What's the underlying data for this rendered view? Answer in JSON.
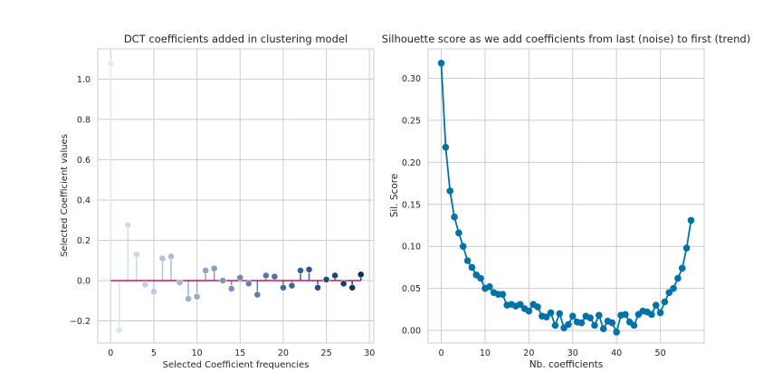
{
  "chart_data": [
    {
      "type": "stem",
      "title": "DCT coefficients added in clustering model",
      "xlabel": "Selected Coefficient frequencies",
      "ylabel": "Selected Coefficient values",
      "xlim": [
        -1.5,
        30.5
      ],
      "ylim": [
        -0.31,
        1.15
      ],
      "xticks": [
        0,
        5,
        10,
        15,
        20,
        25,
        30
      ],
      "yticks": [
        -0.2,
        0.0,
        0.2,
        0.4,
        0.6,
        0.8,
        1.0
      ],
      "ytick_labels": [
        "−0.2",
        "0.0",
        "0.2",
        "0.4",
        "0.6",
        "0.8",
        "1.0"
      ],
      "baseline": 0.0,
      "baseline_color": "#c2185b",
      "color_map": "Blues (light to dark with index)",
      "x": [
        0,
        1,
        2,
        3,
        4,
        5,
        6,
        7,
        8,
        9,
        10,
        11,
        12,
        13,
        14,
        15,
        16,
        17,
        18,
        19,
        20,
        21,
        22,
        23,
        24,
        25,
        26,
        27,
        28,
        29
      ],
      "values": [
        1.075,
        -0.245,
        0.275,
        0.13,
        -0.02,
        -0.055,
        0.11,
        0.12,
        -0.01,
        -0.09,
        -0.08,
        0.05,
        0.06,
        0.0,
        -0.04,
        0.015,
        -0.015,
        -0.07,
        0.025,
        0.02,
        -0.035,
        -0.025,
        0.05,
        0.055,
        -0.035,
        0.005,
        0.025,
        -0.015,
        -0.035,
        0.03
      ]
    },
    {
      "type": "line",
      "title": "Silhouette score as we add coefficients from last (noise) to first (trend)",
      "xlabel": "Nb. coefficients",
      "ylabel": "Sil. Score",
      "xlim": [
        -3,
        60
      ],
      "ylim": [
        -0.015,
        0.335
      ],
      "xticks": [
        0,
        10,
        20,
        30,
        40,
        50
      ],
      "yticks": [
        0.0,
        0.05,
        0.1,
        0.15,
        0.2,
        0.25,
        0.3
      ],
      "ytick_labels": [
        "0.00",
        "0.05",
        "0.10",
        "0.15",
        "0.20",
        "0.25",
        "0.30"
      ],
      "color": "#0072a8",
      "x": [
        0,
        1,
        2,
        3,
        4,
        5,
        6,
        7,
        8,
        9,
        10,
        11,
        12,
        13,
        14,
        15,
        16,
        17,
        18,
        19,
        20,
        21,
        22,
        23,
        24,
        25,
        26,
        27,
        28,
        29,
        30,
        31,
        32,
        33,
        34,
        35,
        36,
        37,
        38,
        39,
        40,
        41,
        42,
        43,
        44,
        45,
        46,
        47,
        48,
        49,
        50,
        51,
        52,
        53,
        54,
        55,
        56,
        57
      ],
      "values": [
        0.318,
        0.218,
        0.166,
        0.135,
        0.116,
        0.1,
        0.083,
        0.075,
        0.066,
        0.062,
        0.05,
        0.052,
        0.045,
        0.043,
        0.043,
        0.03,
        0.031,
        0.029,
        0.031,
        0.026,
        0.023,
        0.031,
        0.028,
        0.017,
        0.016,
        0.021,
        0.006,
        0.02,
        0.003,
        0.007,
        0.017,
        0.01,
        0.009,
        0.017,
        0.015,
        0.006,
        0.018,
        0.002,
        0.011,
        0.009,
        -0.002,
        0.018,
        0.019,
        0.01,
        0.006,
        0.019,
        0.023,
        0.022,
        0.019,
        0.03,
        0.021,
        0.034,
        0.045,
        0.05,
        0.062,
        0.074,
        0.098,
        0.131
      ]
    }
  ]
}
